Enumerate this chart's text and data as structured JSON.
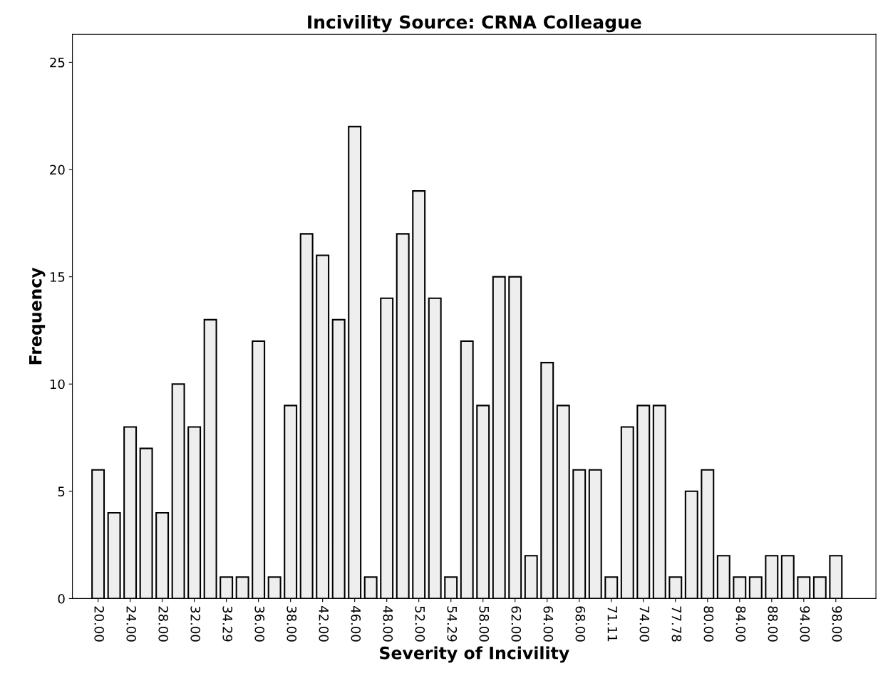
{
  "chart_data": {
    "type": "bar",
    "title": "Incivility Source: CRNA Colleague",
    "xlabel": "Severity of Incivility",
    "ylabel": "Frequency",
    "categories": [
      "20.00",
      null,
      "24.00",
      null,
      "28.00",
      null,
      "32.00",
      null,
      "34.29",
      null,
      "36.00",
      null,
      "38.00",
      null,
      "42.00",
      null,
      "46.00",
      null,
      "48.00",
      null,
      "52.00",
      null,
      "54.29",
      null,
      "58.00",
      null,
      "62.00",
      null,
      "64.00",
      null,
      "68.00",
      null,
      "71.11",
      null,
      "74.00",
      null,
      "77.78",
      null,
      "80.00",
      null,
      "84.00",
      null,
      "88.00",
      null,
      "94.00",
      null,
      "98.00"
    ],
    "values": [
      6,
      4,
      8,
      7,
      4,
      10,
      8,
      13,
      1,
      1,
      12,
      1,
      9,
      17,
      16,
      13,
      22,
      1,
      14,
      17,
      19,
      14,
      1,
      12,
      9,
      15,
      15,
      2,
      11,
      9,
      6,
      6,
      1,
      8,
      9,
      9,
      1,
      5,
      6,
      2,
      1,
      1,
      2,
      2,
      1,
      1,
      2
    ],
    "color": "#eeeeee",
    "ylim": [
      0,
      26.3
    ],
    "yticks": [
      0,
      5,
      10,
      15,
      20,
      25
    ],
    "grid": false
  }
}
